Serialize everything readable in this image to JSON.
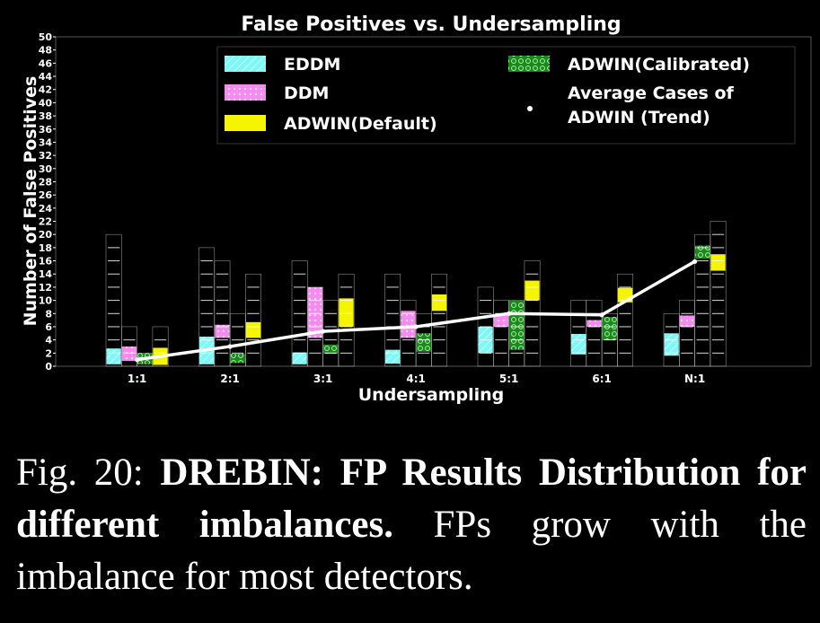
{
  "chart_data": {
    "type": "bar",
    "title": "False Positives vs. Undersampling",
    "xlabel": "Undersampling",
    "ylabel": "Number of False Positives",
    "ylim": [
      0,
      50
    ],
    "y_ticks": [
      0,
      2,
      4,
      6,
      8,
      10,
      12,
      14,
      16,
      18,
      20,
      22,
      24,
      26,
      28,
      30,
      32,
      34,
      36,
      38,
      40,
      42,
      44,
      46,
      48,
      50
    ],
    "categories": [
      "1:1",
      "2:1",
      "3:1",
      "4:1",
      "5:1",
      "6:1",
      "N:1"
    ],
    "grid": "vertical and horizontal within columns",
    "legend_position": "top-right",
    "series": [
      {
        "name": "EDDM",
        "color": "#7ef7f7",
        "pattern": "diagonal-hatch",
        "values": [
          20,
          18,
          16,
          14,
          12,
          10,
          8
        ],
        "filled": [
          [
            0.3,
            2.7
          ],
          [
            0.3,
            4.5
          ],
          [
            0.3,
            2.1
          ],
          [
            0.4,
            2.5
          ],
          [
            2.0,
            6.0
          ],
          [
            1.8,
            4.9
          ],
          [
            1.6,
            5.0
          ]
        ]
      },
      {
        "name": "DDM",
        "color": "#f48cf0",
        "pattern": "small-circles",
        "values": [
          6,
          16,
          12,
          10,
          10,
          10,
          10
        ],
        "filled": [
          [
            0.8,
            3.0
          ],
          [
            4.3,
            6.3
          ],
          [
            4.3,
            12.0
          ],
          [
            4.3,
            8.4
          ],
          [
            6.0,
            7.8
          ],
          [
            6.0,
            7.0
          ],
          [
            6.0,
            7.7
          ]
        ]
      },
      {
        "name": "ADWIN(Calibrated)",
        "color": "#1a8a1a",
        "pattern": "large-circles",
        "values": [
          2,
          8,
          10,
          8,
          10,
          8,
          20
        ],
        "filled": [
          [
            0.3,
            2.0
          ],
          [
            0.5,
            1.9
          ],
          [
            1.9,
            3.3
          ],
          [
            2.2,
            5.0
          ],
          [
            2.5,
            10.0
          ],
          [
            4.0,
            7.5
          ],
          [
            16.3,
            18.3
          ]
        ]
      },
      {
        "name": "ADWIN(Default)",
        "color": "#f5f500",
        "pattern": "solid",
        "values": [
          6,
          14,
          14,
          14,
          16,
          14,
          22
        ],
        "filled": [
          [
            0.2,
            2.8
          ],
          [
            4.3,
            6.7
          ],
          [
            6.0,
            10.3
          ],
          [
            8.4,
            10.9
          ],
          [
            10.0,
            13.0
          ],
          [
            9.7,
            11.9
          ],
          [
            14.5,
            17.0
          ]
        ]
      }
    ],
    "trend": {
      "name": "Average Cases of ADWIN (Trend)",
      "color": "#ffffff",
      "values": [
        1.0,
        3.0,
        5.3,
        6.0,
        8.0,
        7.8,
        15.9
      ]
    }
  },
  "legend": {
    "items": [
      {
        "label": "EDDM"
      },
      {
        "label": "DDM"
      },
      {
        "label": "ADWIN(Default)"
      },
      {
        "label": "ADWIN(Calibrated)"
      },
      {
        "label_line1": "Average Cases of",
        "label_line2": "ADWIN (Trend)"
      }
    ]
  },
  "caption": {
    "prefix": "Fig. 20: ",
    "bold": "DREBIN: FP Results Distribution for different imbalances.",
    "rest": " FPs grow with the imbalance for most detectors."
  }
}
